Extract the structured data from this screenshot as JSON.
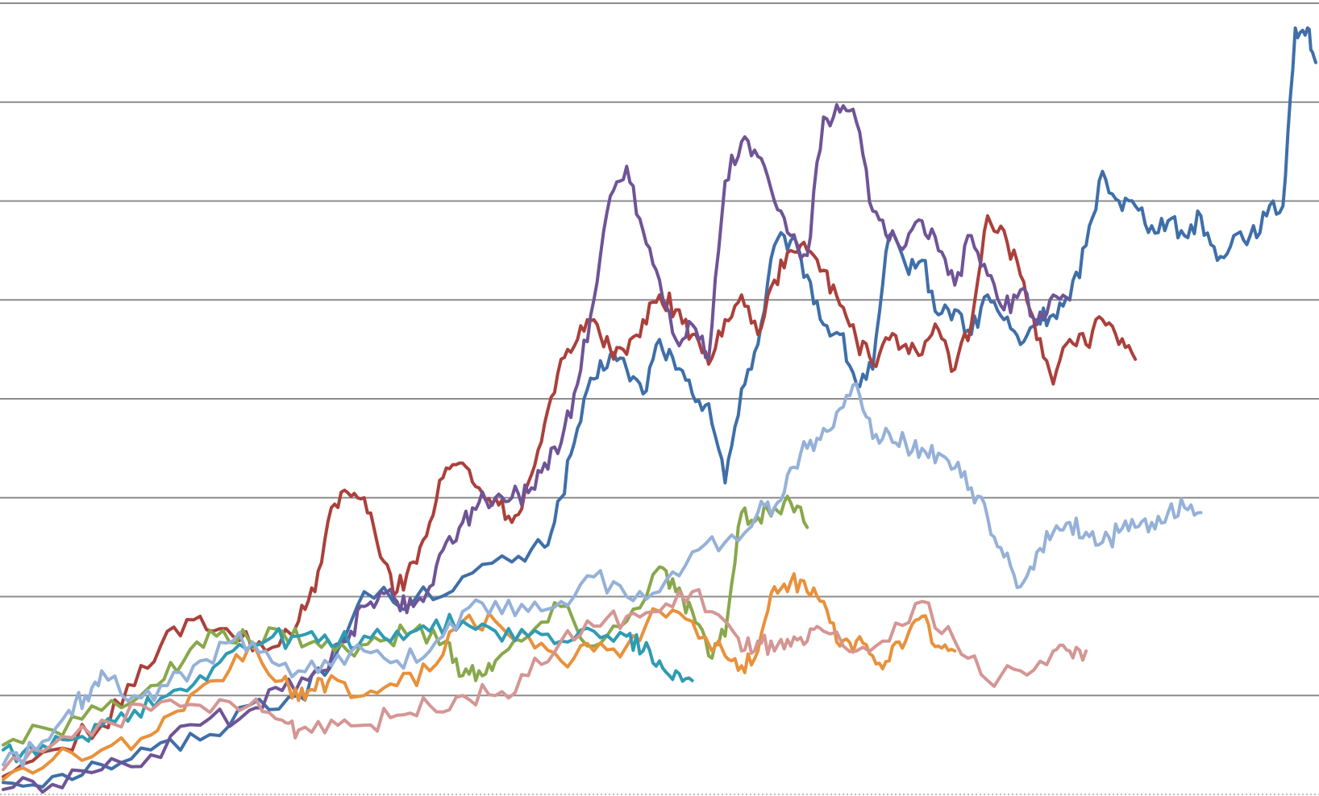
{
  "chart_data": {
    "type": "line",
    "title": "",
    "xlabel": "",
    "ylabel": "",
    "ylim": [
      0,
      8
    ],
    "xlim": [
      0,
      1600
    ],
    "grid": true,
    "grid_lines": [
      1,
      2,
      3,
      4,
      5,
      6,
      7,
      8
    ],
    "legend": "none",
    "series": [
      {
        "color": "#3f6fa8",
        "x": [
          0,
          60,
          120,
          180,
          240,
          300,
          360,
          400,
          440,
          500,
          560,
          620,
          660,
          680,
          700,
          720,
          740,
          760,
          780,
          800,
          820,
          840,
          860,
          880,
          900,
          920,
          940,
          960,
          980,
          1000,
          1020,
          1040,
          1060,
          1080,
          1100,
          1120,
          1140,
          1160,
          1180,
          1200,
          1220,
          1240,
          1260,
          1280,
          1300,
          1320,
          1340,
          1360,
          1380,
          1400,
          1420,
          1440,
          1460,
          1480,
          1500,
          1520,
          1540,
          1560,
          1575,
          1590,
          1600
        ],
        "y": [
          0.12,
          0.18,
          0.3,
          0.45,
          0.55,
          0.9,
          1.0,
          1.3,
          2.05,
          1.95,
          2.2,
          2.35,
          2.5,
          3.0,
          3.7,
          4.2,
          4.45,
          4.3,
          4.05,
          4.6,
          4.3,
          4.05,
          3.95,
          3.15,
          4.1,
          4.55,
          5.55,
          5.6,
          5.25,
          4.75,
          4.65,
          4.15,
          4.3,
          5.65,
          5.35,
          5.4,
          4.85,
          4.9,
          4.65,
          5.05,
          4.8,
          4.55,
          4.8,
          4.85,
          5.0,
          5.55,
          6.3,
          6.0,
          5.95,
          5.75,
          5.8,
          5.65,
          5.85,
          5.4,
          5.65,
          5.65,
          5.85,
          5.95,
          7.75,
          7.75,
          7.4
        ]
      },
      {
        "color": "#ab403b",
        "x": [
          0,
          60,
          120,
          160,
          200,
          240,
          280,
          320,
          360,
          380,
          400,
          420,
          440,
          460,
          480,
          500,
          520,
          540,
          560,
          580,
          600,
          620,
          640,
          660,
          680,
          700,
          720,
          740,
          760,
          780,
          800,
          820,
          840,
          860,
          880,
          900,
          920,
          940,
          960,
          980,
          1000,
          1020,
          1040,
          1060,
          1080,
          1100,
          1120,
          1140,
          1160,
          1180,
          1200,
          1220,
          1240,
          1260,
          1280,
          1300,
          1320,
          1340,
          1360,
          1380
        ],
        "y": [
          0.18,
          0.45,
          0.7,
          1.1,
          1.65,
          1.8,
          1.6,
          1.45,
          1.75,
          2.05,
          2.9,
          3.05,
          3.0,
          2.4,
          2.05,
          2.35,
          2.75,
          3.3,
          3.35,
          3.1,
          3.0,
          2.75,
          3.15,
          3.75,
          4.4,
          4.6,
          4.8,
          4.5,
          4.45,
          4.8,
          5.05,
          4.9,
          4.65,
          4.35,
          4.8,
          5.05,
          4.65,
          5.2,
          5.5,
          5.5,
          5.3,
          4.95,
          4.6,
          4.35,
          4.6,
          4.55,
          4.45,
          4.7,
          4.3,
          4.75,
          5.85,
          5.7,
          5.25,
          4.6,
          4.15,
          4.6,
          4.55,
          4.8,
          4.55,
          4.4
        ]
      },
      {
        "color": "#6f5496",
        "x": [
          0,
          60,
          120,
          180,
          240,
          300,
          340,
          380,
          420,
          440,
          460,
          480,
          500,
          520,
          540,
          560,
          580,
          600,
          620,
          640,
          660,
          680,
          700,
          720,
          740,
          760,
          780,
          800,
          820,
          840,
          860,
          880,
          900,
          920,
          940,
          960,
          980,
          1000,
          1020,
          1040,
          1060,
          1080,
          1100,
          1120,
          1140,
          1160,
          1180,
          1200,
          1220,
          1240,
          1260,
          1280,
          1300
        ],
        "y": [
          0.05,
          0.1,
          0.25,
          0.4,
          0.7,
          0.85,
          1.05,
          1.25,
          1.55,
          1.9,
          2.05,
          1.95,
          1.9,
          2.1,
          2.55,
          2.75,
          2.95,
          3.0,
          3.0,
          3.05,
          3.35,
          3.55,
          4.15,
          5.0,
          6.05,
          6.35,
          5.7,
          5.2,
          4.6,
          4.75,
          4.4,
          6.2,
          6.6,
          6.45,
          6.0,
          5.65,
          5.45,
          6.85,
          6.9,
          6.8,
          5.9,
          5.6,
          5.55,
          5.8,
          5.5,
          5.15,
          5.65,
          5.25,
          4.9,
          5.1,
          4.75,
          5.05,
          5.0
        ]
      },
      {
        "color": "#88a84b",
        "x": [
          0,
          60,
          120,
          180,
          220,
          260,
          300,
          340,
          380,
          420,
          460,
          500,
          540,
          560,
          580,
          600,
          640,
          680,
          720,
          760,
          800,
          820,
          840,
          860,
          880,
          900,
          920,
          940,
          960,
          980
        ],
        "y": [
          0.5,
          0.65,
          0.85,
          1.1,
          1.35,
          1.6,
          1.55,
          1.65,
          1.55,
          1.45,
          1.55,
          1.65,
          1.55,
          1.2,
          1.25,
          1.35,
          1.6,
          1.9,
          1.5,
          1.75,
          2.3,
          2.05,
          1.85,
          1.4,
          1.6,
          2.85,
          2.8,
          2.9,
          2.95,
          2.7
        ]
      },
      {
        "color": "#e8913b",
        "x": [
          0,
          60,
          120,
          180,
          220,
          260,
          300,
          340,
          360,
          380,
          400,
          440,
          480,
          520,
          560,
          600,
          640,
          680,
          720,
          760,
          800,
          840,
          880,
          900,
          920,
          940,
          960,
          980,
          1000,
          1020,
          1040,
          1060,
          1080,
          1100,
          1120,
          1140,
          1160
        ],
        "y": [
          0.15,
          0.35,
          0.45,
          0.6,
          0.85,
          1.15,
          1.5,
          1.15,
          0.95,
          1.05,
          1.2,
          1.0,
          1.1,
          1.25,
          1.75,
          1.75,
          1.6,
          1.35,
          1.45,
          1.5,
          1.85,
          1.75,
          1.4,
          1.3,
          1.45,
          2.1,
          2.15,
          2.05,
          1.95,
          1.5,
          1.55,
          1.4,
          1.35,
          1.55,
          1.8,
          1.5,
          1.45
        ]
      },
      {
        "color": "#2f9bb3",
        "x": [
          0,
          40,
          80,
          120,
          160,
          200,
          240,
          280,
          320,
          360,
          400,
          440,
          480,
          520,
          560,
          600,
          640,
          680,
          720,
          760,
          780,
          800,
          820,
          840
        ],
        "y": [
          0.45,
          0.4,
          0.55,
          0.7,
          0.85,
          1.0,
          1.2,
          1.45,
          1.55,
          1.6,
          1.5,
          1.6,
          1.65,
          1.65,
          1.75,
          1.65,
          1.6,
          1.55,
          1.65,
          1.6,
          1.45,
          1.35,
          1.25,
          1.15
        ]
      },
      {
        "color": "#d49694",
        "x": [
          0,
          60,
          120,
          180,
          240,
          300,
          340,
          360,
          400,
          440,
          480,
          520,
          560,
          600,
          640,
          680,
          720,
          760,
          800,
          840,
          880,
          900,
          920,
          940,
          960,
          980,
          1000,
          1040,
          1080,
          1120,
          1160,
          1200,
          1240,
          1280,
          1300,
          1320
        ],
        "y": [
          0.25,
          0.5,
          0.75,
          0.85,
          0.9,
          0.9,
          0.75,
          0.65,
          0.75,
          0.7,
          0.8,
          0.9,
          1.0,
          1.0,
          1.2,
          1.55,
          1.7,
          1.8,
          1.85,
          2.05,
          1.75,
          1.45,
          1.55,
          1.45,
          1.5,
          1.55,
          1.65,
          1.45,
          1.55,
          1.95,
          1.55,
          1.15,
          1.25,
          1.45,
          1.45,
          1.45
        ]
      },
      {
        "color": "#95b1d8",
        "x": [
          0,
          40,
          80,
          100,
          120,
          160,
          200,
          240,
          280,
          320,
          360,
          400,
          440,
          480,
          520,
          560,
          600,
          640,
          680,
          720,
          760,
          800,
          840,
          880,
          920,
          940,
          960,
          980,
          1000,
          1020,
          1040,
          1060,
          1080,
          1100,
          1120,
          1140,
          1160,
          1180,
          1200,
          1220,
          1240,
          1260,
          1280,
          1300,
          1320,
          1340,
          1360,
          1380,
          1400,
          1420,
          1440,
          1460
        ],
        "y": [
          0.3,
          0.45,
          0.85,
          1.0,
          1.25,
          1.0,
          1.1,
          1.35,
          1.55,
          1.45,
          1.25,
          1.3,
          1.45,
          1.35,
          1.45,
          1.85,
          1.95,
          1.85,
          1.95,
          2.2,
          2.0,
          2.05,
          2.45,
          2.55,
          2.85,
          2.9,
          3.3,
          3.5,
          3.7,
          3.9,
          4.15,
          3.6,
          3.65,
          3.55,
          3.5,
          3.45,
          3.3,
          3.1,
          2.8,
          2.4,
          2.1,
          2.45,
          2.65,
          2.75,
          2.65,
          2.55,
          2.65,
          2.7,
          2.75,
          2.85,
          2.9,
          2.85
        ]
      }
    ]
  }
}
